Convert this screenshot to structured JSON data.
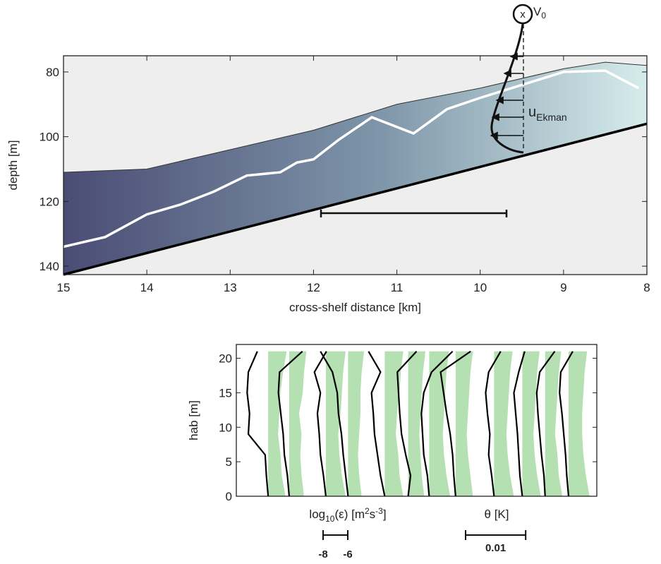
{
  "chart_data": [
    {
      "type": "section",
      "xlabel": "cross-shelf distance [km]",
      "ylabel": "depth [m]",
      "xlim": [
        15,
        8
      ],
      "ylim": [
        75,
        142.6
      ],
      "xticks": [
        15,
        14,
        13,
        12,
        11,
        10,
        9,
        8
      ],
      "yticks": [
        80,
        100,
        120,
        140
      ],
      "surface": {
        "x": [
          15,
          14,
          13,
          12,
          11,
          10,
          9,
          8.5,
          8
        ],
        "y": [
          111,
          110,
          104,
          98,
          90,
          85,
          79,
          77,
          78
        ]
      },
      "bottom": {
        "x": [
          15,
          8
        ],
        "y": [
          142.6,
          96
        ],
        "color": "#000000"
      },
      "isotherm": {
        "x": [
          15,
          14.5,
          14,
          13.6,
          13.2,
          12.8,
          12.4,
          12.2,
          12,
          11.7,
          11.3,
          10.8,
          10.4,
          10,
          9.5,
          9,
          8.5,
          8.1
        ],
        "y": [
          134,
          131,
          124,
          121,
          117,
          112,
          111,
          108,
          107,
          101,
          94,
          99,
          91.5,
          88,
          84,
          80,
          79.6,
          85
        ],
        "color": "#ffffff"
      },
      "annotations": {
        "cross": "x",
        "v": "V",
        "v_sub": "0",
        "u": "u",
        "u_sub": "Ekman"
      }
    },
    {
      "type": "profiles",
      "ylabel": "hab [m]",
      "ylim": [
        0,
        22
      ],
      "yticks": [
        0,
        5,
        10,
        15,
        20
      ],
      "xlim": [
        0,
        0.06
      ],
      "hab": [
        0,
        3,
        6,
        9,
        12,
        15,
        18,
        21
      ],
      "theta": [
        [
          0.0053,
          0.005,
          0.0048,
          0.002,
          0.0022,
          0.0018,
          0.002,
          0.0035
        ],
        [
          0.0088,
          0.0085,
          0.008,
          0.0078,
          0.0074,
          0.007,
          0.0072,
          0.011
        ],
        [
          0.0149,
          0.0145,
          0.014,
          0.0138,
          0.0135,
          0.014,
          0.013,
          0.015
        ],
        [
          0.0186,
          0.0182,
          0.0178,
          0.0175,
          0.017,
          0.0168,
          0.016,
          0.014
        ],
        [
          0.0247,
          0.024,
          0.0235,
          0.023,
          0.0228,
          0.0225,
          0.024,
          0.022
        ],
        [
          0.0286,
          0.029,
          0.0282,
          0.0275,
          0.0272,
          0.027,
          0.0268,
          0.03
        ],
        [
          0.0321,
          0.0318,
          0.0312,
          0.031,
          0.0308,
          0.0312,
          0.0325,
          0.036
        ],
        [
          0.0365,
          0.0362,
          0.036,
          0.0356,
          0.035,
          0.0345,
          0.034,
          0.039
        ],
        [
          0.0429,
          0.0425,
          0.042,
          0.0422,
          0.0418,
          0.0415,
          0.042,
          0.044
        ],
        [
          0.0476,
          0.0472,
          0.047,
          0.0468,
          0.0465,
          0.0462,
          0.047,
          0.048
        ],
        [
          0.0514,
          0.0512,
          0.0508,
          0.0505,
          0.0502,
          0.05,
          0.0505,
          0.053
        ],
        [
          0.0553,
          0.055,
          0.0548,
          0.0545,
          0.0542,
          0.0538,
          0.054,
          0.056
        ]
      ],
      "log_eps": [
        [
          -8.6,
          -8.9,
          -9.0,
          -9.2,
          -9.1,
          -9.0,
          -8.8,
          -8.5
        ],
        [
          -8.8,
          -9.0,
          -9.1,
          -9.0,
          -9.2,
          -8.9,
          -8.8,
          -8.6
        ],
        [
          -8.4,
          -8.7,
          -8.9,
          -9.0,
          -8.8,
          -8.7,
          -8.6,
          -8.4
        ],
        [
          -8.9,
          -9.1,
          -9.2,
          -9.1,
          -9.0,
          -9.0,
          -8.9,
          -8.7
        ],
        [
          -8.5,
          -8.8,
          -8.9,
          -9.1,
          -9.0,
          -8.8,
          -8.7,
          -8.5
        ],
        [
          -8.7,
          -8.9,
          -9.0,
          -9.1,
          -9.0,
          -8.9,
          -8.8,
          -8.6
        ],
        [
          -8.3,
          -8.6,
          -8.8,
          -8.9,
          -8.8,
          -8.7,
          -8.6,
          -8.4
        ],
        [
          -8.6,
          -8.8,
          -9.0,
          -9.1,
          -9.0,
          -8.9,
          -8.8,
          -8.6
        ],
        [
          -8.4,
          -8.7,
          -8.9,
          -9.0,
          -8.9,
          -8.8,
          -8.7,
          -8.5
        ],
        [
          -8.5,
          -8.8,
          -9.0,
          -9.1,
          -9.0,
          -8.9,
          -8.8,
          -8.6
        ],
        [
          -8.6,
          -8.9,
          -9.0,
          -9.2,
          -9.1,
          -9.0,
          -8.9,
          -8.7
        ],
        [
          -8.3,
          -8.6,
          -8.8,
          -8.9,
          -8.9,
          -8.8,
          -8.7,
          -8.5
        ]
      ],
      "eps_label": {
        "pre": "log",
        "sub": "10",
        "mid": "(ε) [m",
        "sup1": "2",
        "mid2": "s",
        "sup2": "-3",
        "post": "]"
      },
      "theta_label": "θ [K]",
      "eps_scale": [
        -8,
        -6
      ],
      "theta_scale": 0.01,
      "eps_color": "#a8dba3",
      "theta_color": "#000000"
    }
  ]
}
